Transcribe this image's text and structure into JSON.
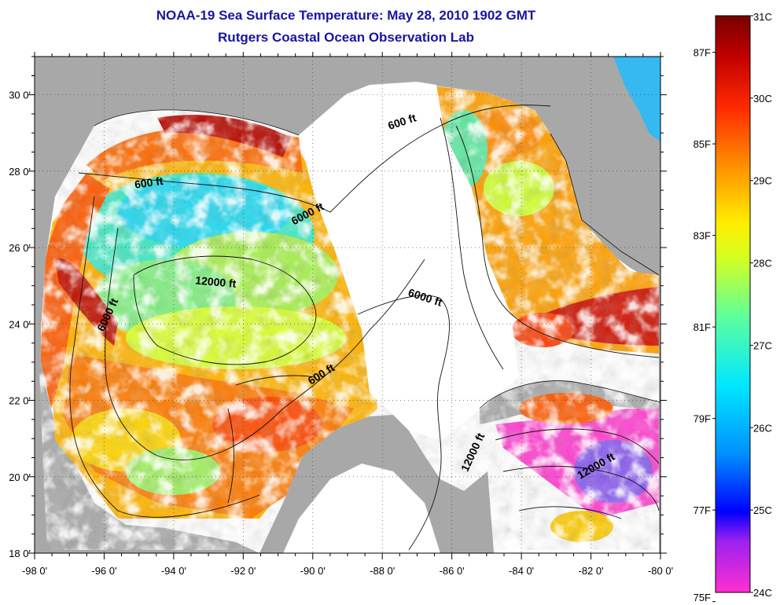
{
  "title": "NOAA-19 Sea Surface Temperature:  May 28, 2010 1902 GMT",
  "subtitle": "Rutgers Coastal Ocean Observation Lab",
  "map": {
    "lon_range": [
      -98,
      -80
    ],
    "lat_range": [
      18,
      31
    ],
    "x_ticks": [
      "-98 0'",
      "-96 0'",
      "-94 0'",
      "-92 0'",
      "-90 0'",
      "-88 0'",
      "-86 0'",
      "-84 0'",
      "-82 0'",
      "-80 0'"
    ],
    "y_ticks": [
      "18 0'",
      "20 0'",
      "22 0'",
      "24 0'",
      "26 0'",
      "28 0'",
      "30 0'"
    ],
    "land_color": "#a8a8a8",
    "cloud_color": "#ffffff",
    "contours": [
      {
        "label": "600 ft",
        "lon": -94.7,
        "lat": 27.6
      },
      {
        "label": "6000 ft",
        "lon": -90.1,
        "lat": 26.8
      },
      {
        "label": "600 ft",
        "lon": -87.4,
        "lat": 29.2
      },
      {
        "label": "12000 ft",
        "lon": -92.8,
        "lat": 25.0
      },
      {
        "label": "6000 ft",
        "lon": -95.8,
        "lat": 24.2
      },
      {
        "label": "6000 ft",
        "lon": -86.8,
        "lat": 24.6
      },
      {
        "label": "600 ft",
        "lon": -89.7,
        "lat": 22.6
      },
      {
        "label": "12000 ft",
        "lon": -85.3,
        "lat": 20.6
      },
      {
        "label": "12000 ft",
        "lon": -81.8,
        "lat": 20.2
      }
    ]
  },
  "colorbar": {
    "celsius_labels": [
      "31C",
      "30C",
      "29C",
      "28C",
      "27C",
      "26C",
      "25C",
      "24C"
    ],
    "fahrenheit_labels": [
      "87F",
      "85F",
      "83F",
      "81F",
      "79F",
      "77F",
      "75F"
    ],
    "celsius_values": [
      31,
      30,
      29,
      28,
      27,
      26,
      25,
      24
    ],
    "fahrenheit_values": [
      87,
      85,
      83,
      81,
      79,
      77,
      75
    ],
    "range_c": [
      24,
      31
    ],
    "colors": [
      "#ff30d0",
      "#9a20f0",
      "#0000ff",
      "#0090ff",
      "#00e8ff",
      "#60ff9a",
      "#d4ff20",
      "#ffee00",
      "#ff9900",
      "#ff2a00",
      "#c00000",
      "#780000"
    ]
  }
}
